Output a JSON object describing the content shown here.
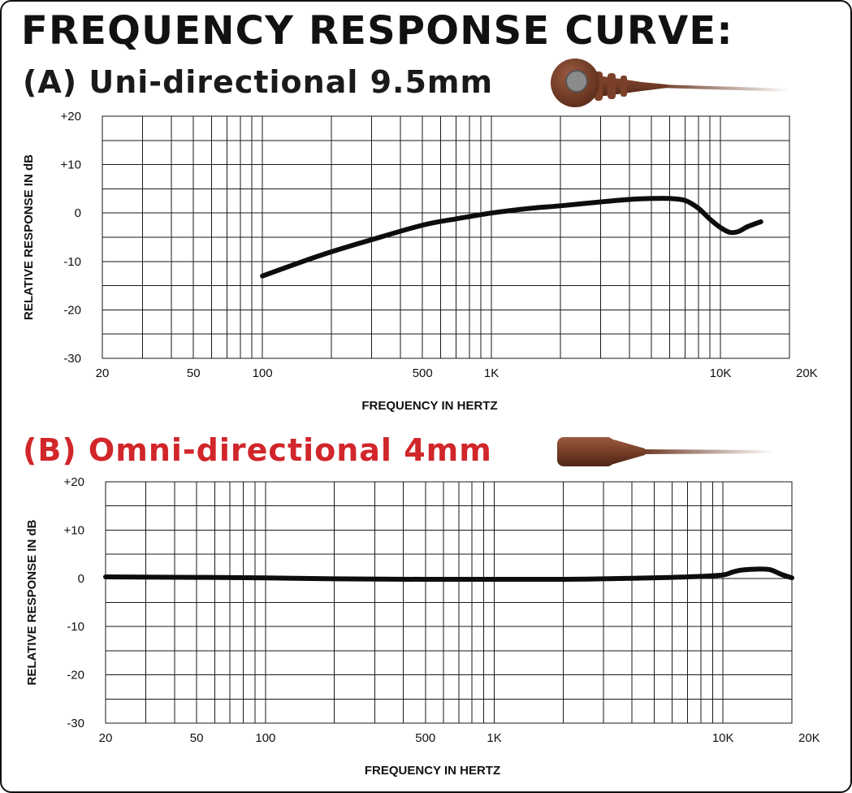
{
  "headline": "FREQUENCY RESPONSE CURVE:",
  "colors": {
    "text": "#111111",
    "section_b_title": "#d1262a",
    "curve": "#0d0d0d",
    "mic_body": "#6e3a26"
  },
  "mic_a_icon": "cardioid-lavalier-mic-icon",
  "mic_b_icon": "omni-lavalier-mic-icon",
  "chart_data": [
    {
      "type": "line",
      "title": "(A) Uni-directional  9.5mm",
      "xlabel": "FREQUENCY IN HERTZ",
      "ylabel": "RELATIVE RESPONSE IN dB",
      "x_scale": "log",
      "xlim": [
        20,
        20000
      ],
      "ylim": [
        -30,
        20
      ],
      "grid": true,
      "x_ticks": [
        {
          "value": 20,
          "label": "20"
        },
        {
          "value": 50,
          "label": "50"
        },
        {
          "value": 100,
          "label": "100"
        },
        {
          "value": 500,
          "label": "500"
        },
        {
          "value": 1000,
          "label": "1K"
        },
        {
          "value": 10000,
          "label": "10K"
        },
        {
          "value": 20000,
          "label": "20K"
        }
      ],
      "y_ticks": [
        {
          "value": 20,
          "label": "+20"
        },
        {
          "value": 10,
          "label": "+10"
        },
        {
          "value": 0,
          "label": "0"
        },
        {
          "value": -10,
          "label": "-10"
        },
        {
          "value": -20,
          "label": "-20"
        },
        {
          "value": -30,
          "label": "-30"
        }
      ],
      "series": [
        {
          "x": [
            100,
            150,
            200,
            300,
            500,
            700,
            1000,
            1500,
            2000,
            3000,
            4000,
            5000,
            6000,
            7000,
            8000,
            9000,
            10000,
            11000,
            12000,
            13000,
            14000,
            15000
          ],
          "y": [
            -13,
            -10,
            -8,
            -5.5,
            -2.5,
            -1.2,
            0,
            1,
            1.5,
            2.3,
            2.8,
            3,
            3,
            2.6,
            1,
            -1.3,
            -3,
            -4,
            -3.8,
            -2.9,
            -2.3,
            -1.8
          ]
        }
      ]
    },
    {
      "type": "line",
      "title": "(B) Omni-directional  4mm",
      "xlabel": "FREQUENCY IN HERTZ",
      "ylabel": "RELATIVE RESPONSE IN dB",
      "x_scale": "log",
      "xlim": [
        20,
        20000
      ],
      "ylim": [
        -30,
        20
      ],
      "grid": true,
      "x_ticks": [
        {
          "value": 20,
          "label": "20"
        },
        {
          "value": 50,
          "label": "50"
        },
        {
          "value": 100,
          "label": "100"
        },
        {
          "value": 500,
          "label": "500"
        },
        {
          "value": 1000,
          "label": "1K"
        },
        {
          "value": 10000,
          "label": "10K"
        },
        {
          "value": 20000,
          "label": "20K"
        }
      ],
      "y_ticks": [
        {
          "value": 20,
          "label": "+20"
        },
        {
          "value": 10,
          "label": "+10"
        },
        {
          "value": 0,
          "label": "0"
        },
        {
          "value": -10,
          "label": "-10"
        },
        {
          "value": -20,
          "label": "-20"
        },
        {
          "value": -30,
          "label": "-30"
        }
      ],
      "series": [
        {
          "x": [
            20,
            50,
            100,
            200,
            500,
            1000,
            2000,
            4000,
            6000,
            8000,
            10000,
            11000,
            12000,
            14000,
            16000,
            18000,
            20000
          ],
          "y": [
            0.3,
            0.2,
            0.1,
            -0.1,
            -0.2,
            -0.2,
            -0.2,
            0,
            0.2,
            0.4,
            0.7,
            1.3,
            1.7,
            1.9,
            1.8,
            0.8,
            0.1
          ]
        }
      ]
    }
  ]
}
